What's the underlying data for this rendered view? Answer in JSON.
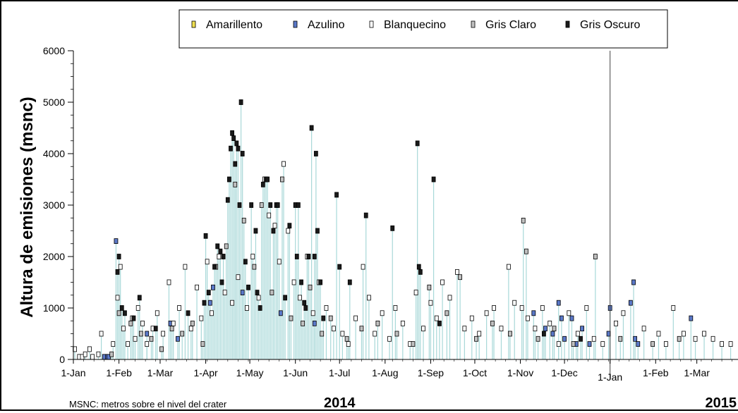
{
  "chart_data": {
    "type": "scatter",
    "ylabel": "Altura de emisiones (msnc)",
    "ylim": [
      0,
      6000
    ],
    "yticks": [
      0,
      1000,
      2000,
      3000,
      4000,
      5000,
      6000
    ],
    "xlim": [
      "2014-01-01",
      "2015-03-29"
    ],
    "xticks": [
      {
        "label": "1-Jan",
        "date": "2014-01-01"
      },
      {
        "label": "1-Feb",
        "date": "2014-02-01"
      },
      {
        "label": "1-Mar",
        "date": "2014-03-01"
      },
      {
        "label": "1-Apr",
        "date": "2014-04-01"
      },
      {
        "label": "1-May",
        "date": "2014-05-01"
      },
      {
        "label": "1-Jun",
        "date": "2014-06-01"
      },
      {
        "label": "1-Jul",
        "date": "2014-07-01"
      },
      {
        "label": "1-Aug",
        "date": "2014-08-01"
      },
      {
        "label": "1-Sep",
        "date": "2014-09-01"
      },
      {
        "label": "1-Oct",
        "date": "2014-10-01"
      },
      {
        "label": "1-Nov",
        "date": "2014-11-01"
      },
      {
        "label": "1-Dec",
        "date": "2014-12-01"
      },
      {
        "label": "1-Jan",
        "date": "2015-01-01"
      },
      {
        "label": "1-Feb",
        "date": "2015-02-01"
      },
      {
        "label": "1-Mar",
        "date": "2015-03-01"
      }
    ],
    "year_labels": [
      {
        "label": "2014",
        "date": "2014-07-01"
      },
      {
        "label": "2015",
        "date": "2015-03-29"
      }
    ],
    "year_divider": "2015-01-01",
    "grid": false,
    "legend_position": "top-center",
    "stem_color": "#a8d8d8",
    "footnote": "MSNC: metros sobre el nivel del crater",
    "series": [
      {
        "name": "Amarillento",
        "color": "#f0e050",
        "points": []
      },
      {
        "name": "Azulino",
        "color": "#5a78c8",
        "points": [
          [
            "2014-01-22",
            50
          ],
          [
            "2014-01-24",
            50
          ],
          [
            "2014-01-25",
            50
          ],
          [
            "2014-01-30",
            2300
          ],
          [
            "2014-02-20",
            500
          ],
          [
            "2014-03-08",
            700
          ],
          [
            "2014-03-13",
            400
          ],
          [
            "2014-04-04",
            1100
          ],
          [
            "2014-04-06",
            1400
          ],
          [
            "2014-04-26",
            1300
          ],
          [
            "2014-05-22",
            900
          ],
          [
            "2014-06-14",
            700
          ],
          [
            "2014-11-10",
            900
          ],
          [
            "2014-11-18",
            600
          ],
          [
            "2014-11-23",
            500
          ],
          [
            "2014-11-27",
            1100
          ],
          [
            "2014-11-29",
            800
          ],
          [
            "2014-12-01",
            400
          ],
          [
            "2014-12-06",
            800
          ],
          [
            "2014-12-09",
            300
          ],
          [
            "2014-12-13",
            600
          ],
          [
            "2014-12-18",
            300
          ],
          [
            "2014-12-31",
            500
          ],
          [
            "2015-01-01",
            1000
          ],
          [
            "2015-01-15",
            1100
          ],
          [
            "2015-01-17",
            1500
          ],
          [
            "2015-01-18",
            400
          ],
          [
            "2015-01-20",
            300
          ],
          [
            "2015-02-25",
            800
          ]
        ]
      },
      {
        "name": "Blanquecino",
        "color": "#ffffff",
        "points": [
          [
            "2014-01-02",
            200
          ],
          [
            "2014-01-05",
            50
          ],
          [
            "2014-01-07",
            50
          ],
          [
            "2014-01-09",
            100
          ],
          [
            "2014-01-12",
            200
          ],
          [
            "2014-01-14",
            50
          ],
          [
            "2014-01-18",
            100
          ],
          [
            "2014-01-20",
            500
          ],
          [
            "2014-01-28",
            300
          ],
          [
            "2014-01-31",
            1200
          ],
          [
            "2014-02-02",
            1800
          ],
          [
            "2014-02-04",
            600
          ],
          [
            "2014-02-07",
            300
          ],
          [
            "2014-02-10",
            800
          ],
          [
            "2014-02-12",
            400
          ],
          [
            "2014-02-14",
            1000
          ],
          [
            "2014-02-17",
            700
          ],
          [
            "2014-02-20",
            300
          ],
          [
            "2014-02-24",
            600
          ],
          [
            "2014-02-27",
            900
          ],
          [
            "2014-03-03",
            500
          ],
          [
            "2014-03-07",
            1500
          ],
          [
            "2014-03-10",
            700
          ],
          [
            "2014-03-14",
            1000
          ],
          [
            "2014-03-18",
            1800
          ],
          [
            "2014-03-22",
            600
          ],
          [
            "2014-03-26",
            1400
          ],
          [
            "2014-03-29",
            800
          ],
          [
            "2014-04-02",
            1900
          ],
          [
            "2014-04-05",
            900
          ],
          [
            "2014-04-10",
            2000
          ],
          [
            "2014-04-14",
            1300
          ],
          [
            "2014-04-19",
            1100
          ],
          [
            "2014-04-23",
            1600
          ],
          [
            "2014-04-29",
            1000
          ],
          [
            "2014-05-03",
            2000
          ],
          [
            "2014-05-07",
            1200
          ],
          [
            "2014-05-11",
            3500
          ],
          [
            "2014-05-14",
            2800
          ],
          [
            "2014-05-18",
            2600
          ],
          [
            "2014-05-21",
            1900
          ],
          [
            "2014-05-24",
            3800
          ],
          [
            "2014-05-27",
            2500
          ],
          [
            "2014-05-31",
            1500
          ],
          [
            "2014-06-04",
            1200
          ],
          [
            "2014-06-09",
            2000
          ],
          [
            "2014-06-13",
            900
          ],
          [
            "2014-06-17",
            1500
          ],
          [
            "2014-06-22",
            1000
          ],
          [
            "2014-06-27",
            600
          ],
          [
            "2014-07-03",
            500
          ],
          [
            "2014-07-07",
            300
          ],
          [
            "2014-07-12",
            800
          ],
          [
            "2014-07-17",
            1800
          ],
          [
            "2014-07-21",
            1200
          ],
          [
            "2014-07-25",
            500
          ],
          [
            "2014-07-30",
            900
          ],
          [
            "2014-08-04",
            400
          ],
          [
            "2014-08-08",
            1000
          ],
          [
            "2014-08-13",
            700
          ],
          [
            "2014-08-18",
            300
          ],
          [
            "2014-08-22",
            1300
          ],
          [
            "2014-08-27",
            600
          ],
          [
            "2014-09-01",
            1100
          ],
          [
            "2014-09-05",
            800
          ],
          [
            "2014-09-09",
            1500
          ],
          [
            "2014-09-14",
            1200
          ],
          [
            "2014-09-19",
            1700
          ],
          [
            "2014-09-24",
            600
          ],
          [
            "2014-09-29",
            800
          ],
          [
            "2014-10-04",
            500
          ],
          [
            "2014-10-09",
            900
          ],
          [
            "2014-10-14",
            1000
          ],
          [
            "2014-10-19",
            600
          ],
          [
            "2014-10-24",
            1800
          ],
          [
            "2014-10-28",
            1100
          ],
          [
            "2014-11-02",
            1000
          ],
          [
            "2014-11-06",
            800
          ],
          [
            "2014-11-11",
            600
          ],
          [
            "2014-11-16",
            1000
          ],
          [
            "2014-11-21",
            700
          ],
          [
            "2014-11-27",
            300
          ],
          [
            "2014-12-04",
            900
          ],
          [
            "2014-12-10",
            500
          ],
          [
            "2014-12-16",
            1000
          ],
          [
            "2014-12-21",
            400
          ],
          [
            "2014-12-27",
            300
          ],
          [
            "2015-01-05",
            700
          ],
          [
            "2015-01-10",
            900
          ],
          [
            "2015-01-24",
            600
          ],
          [
            "2015-02-03",
            500
          ],
          [
            "2015-02-08",
            300
          ],
          [
            "2015-02-13",
            1000
          ],
          [
            "2015-02-20",
            500
          ],
          [
            "2015-02-28",
            400
          ],
          [
            "2015-03-06",
            500
          ],
          [
            "2015-03-12",
            400
          ],
          [
            "2015-03-18",
            300
          ],
          [
            "2015-03-24",
            300
          ]
        ]
      },
      {
        "name": "Gris Claro",
        "color": "#c0c0c0",
        "points": [
          [
            "2014-01-27",
            100
          ],
          [
            "2014-02-01",
            900
          ],
          [
            "2014-02-09",
            700
          ],
          [
            "2014-02-16",
            500
          ],
          [
            "2014-02-23",
            400
          ],
          [
            "2014-03-02",
            200
          ],
          [
            "2014-03-09",
            600
          ],
          [
            "2014-03-16",
            500
          ],
          [
            "2014-03-23",
            700
          ],
          [
            "2014-03-30",
            300
          ],
          [
            "2014-04-08",
            1800
          ],
          [
            "2014-04-15",
            2200
          ],
          [
            "2014-04-21",
            3400
          ],
          [
            "2014-04-27",
            2700
          ],
          [
            "2014-05-04",
            1800
          ],
          [
            "2014-05-09",
            3000
          ],
          [
            "2014-05-16",
            1300
          ],
          [
            "2014-05-23",
            3500
          ],
          [
            "2014-05-29",
            800
          ],
          [
            "2014-06-06",
            700
          ],
          [
            "2014-06-11",
            1400
          ],
          [
            "2014-06-19",
            500
          ],
          [
            "2014-06-25",
            800
          ],
          [
            "2014-07-06",
            400
          ],
          [
            "2014-07-16",
            600
          ],
          [
            "2014-07-27",
            700
          ],
          [
            "2014-08-09",
            500
          ],
          [
            "2014-08-20",
            300
          ],
          [
            "2014-08-31",
            1400
          ],
          [
            "2014-09-12",
            900
          ],
          [
            "2014-09-21",
            1600
          ],
          [
            "2014-10-02",
            400
          ],
          [
            "2014-10-13",
            700
          ],
          [
            "2014-10-25",
            500
          ],
          [
            "2014-11-03",
            2700
          ],
          [
            "2014-11-05",
            2100
          ],
          [
            "2014-11-13",
            400
          ],
          [
            "2014-11-24",
            600
          ],
          [
            "2014-12-07",
            300
          ],
          [
            "2014-12-22",
            2000
          ],
          [
            "2015-01-08",
            400
          ],
          [
            "2015-01-30",
            300
          ],
          [
            "2015-02-17",
            400
          ]
        ]
      },
      {
        "name": "Gris Oscuro",
        "color": "#1a1a1a",
        "points": [
          [
            "2014-01-31",
            1700
          ],
          [
            "2014-02-01",
            2000
          ],
          [
            "2014-02-03",
            1000
          ],
          [
            "2014-02-05",
            900
          ],
          [
            "2014-02-11",
            800
          ],
          [
            "2014-02-15",
            1200
          ],
          [
            "2014-02-26",
            600
          ],
          [
            "2014-03-20",
            900
          ],
          [
            "2014-03-31",
            1100
          ],
          [
            "2014-04-01",
            2400
          ],
          [
            "2014-04-03",
            1300
          ],
          [
            "2014-04-07",
            1800
          ],
          [
            "2014-04-09",
            2200
          ],
          [
            "2014-04-11",
            2100
          ],
          [
            "2014-04-12",
            1500
          ],
          [
            "2014-04-13",
            2000
          ],
          [
            "2014-04-16",
            3100
          ],
          [
            "2014-04-17",
            3500
          ],
          [
            "2014-04-18",
            4100
          ],
          [
            "2014-04-19",
            4400
          ],
          [
            "2014-04-20",
            4300
          ],
          [
            "2014-04-21",
            3800
          ],
          [
            "2014-04-22",
            4200
          ],
          [
            "2014-04-23",
            4100
          ],
          [
            "2014-04-24",
            3000
          ],
          [
            "2014-04-25",
            5000
          ],
          [
            "2014-04-26",
            4000
          ],
          [
            "2014-04-28",
            1900
          ],
          [
            "2014-04-30",
            1400
          ],
          [
            "2014-05-02",
            3000
          ],
          [
            "2014-05-05",
            2500
          ],
          [
            "2014-05-06",
            1300
          ],
          [
            "2014-05-08",
            1000
          ],
          [
            "2014-05-10",
            3400
          ],
          [
            "2014-05-12",
            3500
          ],
          [
            "2014-05-13",
            3500
          ],
          [
            "2014-05-15",
            3000
          ],
          [
            "2014-05-17",
            2500
          ],
          [
            "2014-05-19",
            3000
          ],
          [
            "2014-05-20",
            3000
          ],
          [
            "2014-05-25",
            1200
          ],
          [
            "2014-05-28",
            2600
          ],
          [
            "2014-06-01",
            3000
          ],
          [
            "2014-06-02",
            2000
          ],
          [
            "2014-06-03",
            3000
          ],
          [
            "2014-06-05",
            1500
          ],
          [
            "2014-06-07",
            1100
          ],
          [
            "2014-06-08",
            1000
          ],
          [
            "2014-06-10",
            2000
          ],
          [
            "2014-06-12",
            4500
          ],
          [
            "2014-06-14",
            2000
          ],
          [
            "2014-06-15",
            4000
          ],
          [
            "2014-06-16",
            2500
          ],
          [
            "2014-06-18",
            1500
          ],
          [
            "2014-06-20",
            800
          ],
          [
            "2014-06-29",
            3200
          ],
          [
            "2014-07-01",
            1800
          ],
          [
            "2014-07-08",
            1500
          ],
          [
            "2014-07-19",
            2800
          ],
          [
            "2014-08-06",
            2550
          ],
          [
            "2014-08-23",
            4200
          ],
          [
            "2014-08-24",
            1800
          ],
          [
            "2014-08-25",
            1700
          ],
          [
            "2014-09-03",
            3500
          ],
          [
            "2014-09-07",
            700
          ],
          [
            "2014-11-17",
            500
          ],
          [
            "2014-12-12",
            400
          ]
        ]
      }
    ]
  }
}
